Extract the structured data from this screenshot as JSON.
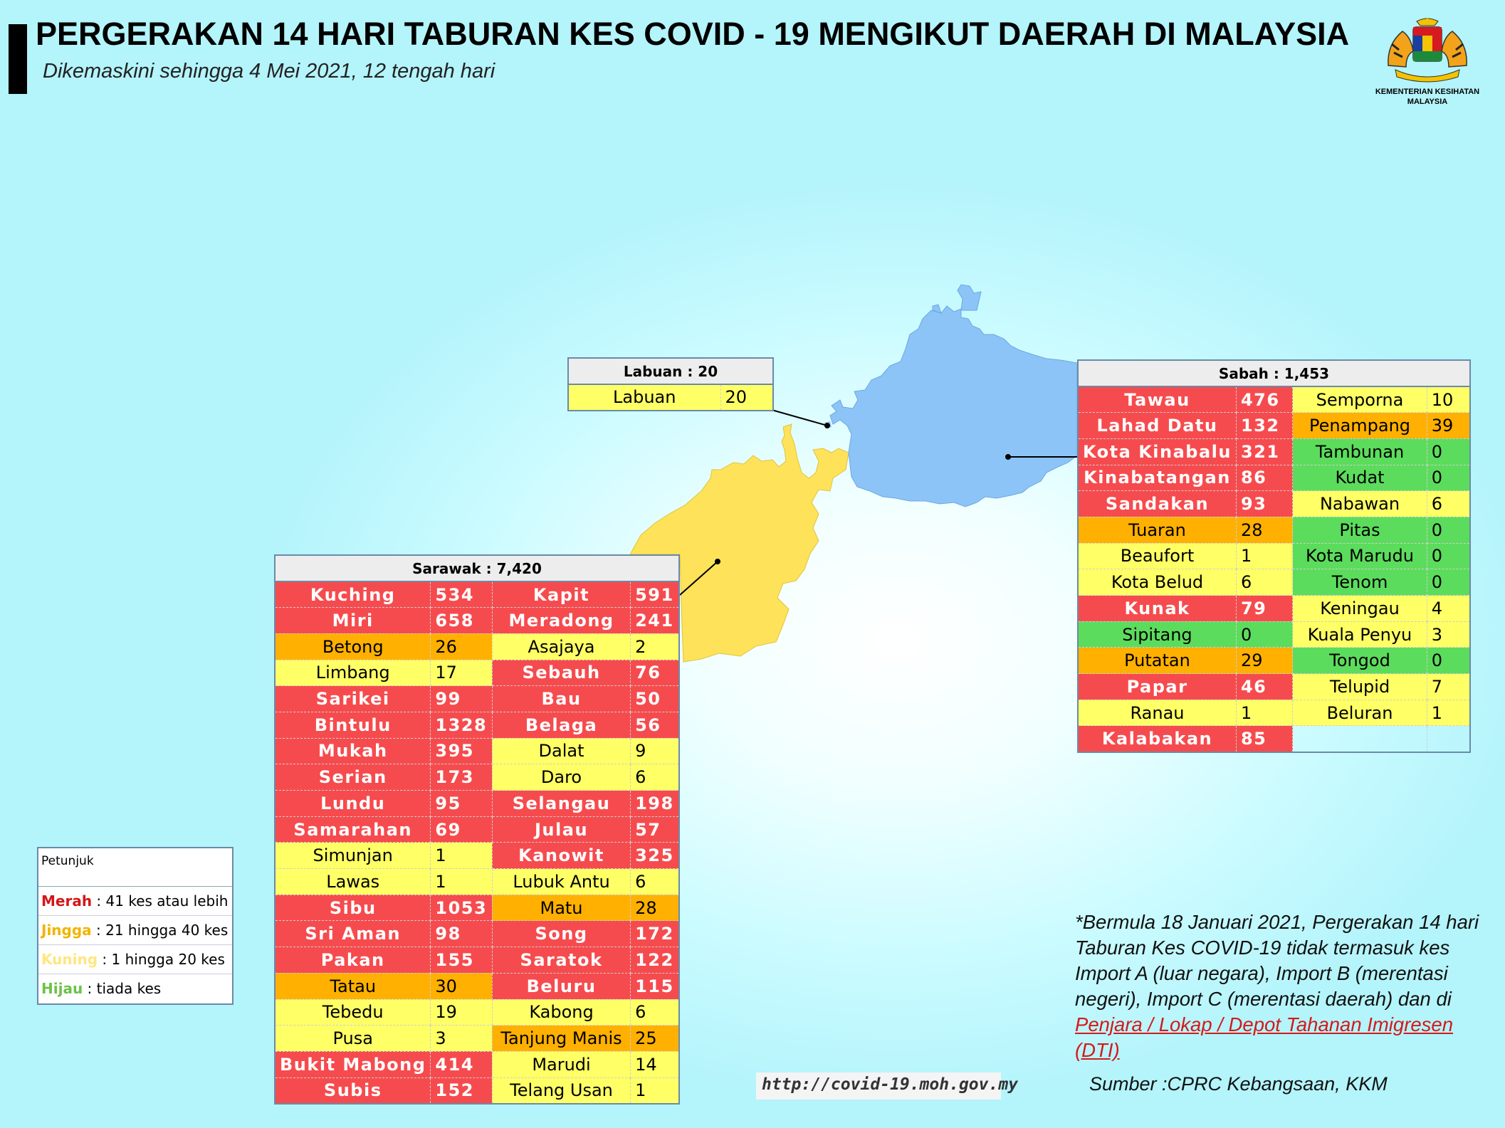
{
  "header": {
    "title": "PERGERAKAN 14 HARI TABURAN KES COVID - 19 MENGIKUT DAERAH DI MALAYSIA",
    "subtitle": "Dikemaskini sehingga 4 Mei 2021, 12 tengah hari"
  },
  "logo": {
    "line1": "KEMENTERIAN KESIHATAN",
    "line2": "MALAYSIA"
  },
  "colors": {
    "merah": "#f64b4e",
    "jingga": "#ffb000",
    "kuning": "#ffff66",
    "hijau": "#5cdc5c",
    "sarawak_map": "#fde25a",
    "sabah_map": "#8dc4f7"
  },
  "labuan": {
    "header": "Labuan : 20",
    "rows": [
      {
        "name": "Labuan",
        "value": "20",
        "level": "Y"
      }
    ]
  },
  "sabah": {
    "header": "Sabah : 1,453",
    "rows": [
      [
        {
          "name": "Tawau",
          "value": "476",
          "level": "R"
        },
        {
          "name": "Semporna",
          "value": "10",
          "level": "Y"
        }
      ],
      [
        {
          "name": "Lahad Datu",
          "value": "132",
          "level": "R"
        },
        {
          "name": "Penampang",
          "value": "39",
          "level": "O"
        }
      ],
      [
        {
          "name": "Kota Kinabalu",
          "value": "321",
          "level": "R"
        },
        {
          "name": "Tambunan",
          "value": "0",
          "level": "G"
        }
      ],
      [
        {
          "name": "Kinabatangan",
          "value": "86",
          "level": "R"
        },
        {
          "name": "Kudat",
          "value": "0",
          "level": "G"
        }
      ],
      [
        {
          "name": "Sandakan",
          "value": "93",
          "level": "R"
        },
        {
          "name": "Nabawan",
          "value": "6",
          "level": "Y"
        }
      ],
      [
        {
          "name": "Tuaran",
          "value": "28",
          "level": "O"
        },
        {
          "name": "Pitas",
          "value": "0",
          "level": "G"
        }
      ],
      [
        {
          "name": "Beaufort",
          "value": "1",
          "level": "Y"
        },
        {
          "name": "Kota Marudu",
          "value": "0",
          "level": "G"
        }
      ],
      [
        {
          "name": "Kota Belud",
          "value": "6",
          "level": "Y"
        },
        {
          "name": "Tenom",
          "value": "0",
          "level": "G"
        }
      ],
      [
        {
          "name": "Kunak",
          "value": "79",
          "level": "R"
        },
        {
          "name": "Keningau",
          "value": "4",
          "level": "Y"
        }
      ],
      [
        {
          "name": "Sipitang",
          "value": "0",
          "level": "G"
        },
        {
          "name": "Kuala Penyu",
          "value": "3",
          "level": "Y"
        }
      ],
      [
        {
          "name": "Putatan",
          "value": "29",
          "level": "O"
        },
        {
          "name": "Tongod",
          "value": "0",
          "level": "G"
        }
      ],
      [
        {
          "name": "Papar",
          "value": "46",
          "level": "R"
        },
        {
          "name": "Telupid",
          "value": "7",
          "level": "Y"
        }
      ],
      [
        {
          "name": "Ranau",
          "value": "1",
          "level": "Y"
        },
        {
          "name": "Beluran",
          "value": "1",
          "level": "Y"
        }
      ],
      [
        {
          "name": "Kalabakan",
          "value": "85",
          "level": "R"
        },
        {
          "name": "",
          "value": "",
          "level": "E"
        }
      ]
    ]
  },
  "sarawak": {
    "header": "Sarawak : 7,420",
    "rows": [
      [
        {
          "name": "Kuching",
          "value": "534",
          "level": "R"
        },
        {
          "name": "Kapit",
          "value": "591",
          "level": "R"
        }
      ],
      [
        {
          "name": "Miri",
          "value": "658",
          "level": "R"
        },
        {
          "name": "Meradong",
          "value": "241",
          "level": "R"
        }
      ],
      [
        {
          "name": "Betong",
          "value": "26",
          "level": "O"
        },
        {
          "name": "Asajaya",
          "value": "2",
          "level": "Y"
        }
      ],
      [
        {
          "name": "Limbang",
          "value": "17",
          "level": "Y"
        },
        {
          "name": "Sebauh",
          "value": "76",
          "level": "R"
        }
      ],
      [
        {
          "name": "Sarikei",
          "value": "99",
          "level": "R"
        },
        {
          "name": "Bau",
          "value": "50",
          "level": "R"
        }
      ],
      [
        {
          "name": "Bintulu",
          "value": "1328",
          "level": "R"
        },
        {
          "name": "Belaga",
          "value": "56",
          "level": "R"
        }
      ],
      [
        {
          "name": "Mukah",
          "value": "395",
          "level": "R"
        },
        {
          "name": "Dalat",
          "value": "9",
          "level": "Y"
        }
      ],
      [
        {
          "name": "Serian",
          "value": "173",
          "level": "R"
        },
        {
          "name": "Daro",
          "value": "6",
          "level": "Y"
        }
      ],
      [
        {
          "name": "Lundu",
          "value": "95",
          "level": "R"
        },
        {
          "name": "Selangau",
          "value": "198",
          "level": "R"
        }
      ],
      [
        {
          "name": "Samarahan",
          "value": "69",
          "level": "R"
        },
        {
          "name": "Julau",
          "value": "57",
          "level": "R"
        }
      ],
      [
        {
          "name": "Simunjan",
          "value": "1",
          "level": "Y"
        },
        {
          "name": "Kanowit",
          "value": "325",
          "level": "R"
        }
      ],
      [
        {
          "name": "Lawas",
          "value": "1",
          "level": "Y"
        },
        {
          "name": "Lubuk Antu",
          "value": "6",
          "level": "Y"
        }
      ],
      [
        {
          "name": "Sibu",
          "value": "1053",
          "level": "R"
        },
        {
          "name": "Matu",
          "value": "28",
          "level": "O"
        }
      ],
      [
        {
          "name": "Sri Aman",
          "value": "98",
          "level": "R"
        },
        {
          "name": "Song",
          "value": "172",
          "level": "R"
        }
      ],
      [
        {
          "name": "Pakan",
          "value": "155",
          "level": "R"
        },
        {
          "name": "Saratok",
          "value": "122",
          "level": "R"
        }
      ],
      [
        {
          "name": "Tatau",
          "value": "30",
          "level": "O"
        },
        {
          "name": "Beluru",
          "value": "115",
          "level": "R"
        }
      ],
      [
        {
          "name": "Tebedu",
          "value": "19",
          "level": "Y"
        },
        {
          "name": "Kabong",
          "value": "6",
          "level": "Y"
        }
      ],
      [
        {
          "name": "Pusa",
          "value": "3",
          "level": "Y"
        },
        {
          "name": "Tanjung Manis",
          "value": "25",
          "level": "O"
        }
      ],
      [
        {
          "name": "Bukit Mabong",
          "value": "414",
          "level": "R"
        },
        {
          "name": "Marudi",
          "value": "14",
          "level": "Y"
        }
      ],
      [
        {
          "name": "Subis",
          "value": "152",
          "level": "R"
        },
        {
          "name": "Telang Usan",
          "value": "1",
          "level": "Y"
        }
      ]
    ]
  },
  "legend": {
    "title": "Petunjuk",
    "items": [
      {
        "key": "Merah",
        "text": " : 41 kes atau lebih",
        "color": "#d41616"
      },
      {
        "key": "Jingga",
        "text": " : 21 hingga 40 kes",
        "color": "#f2b400"
      },
      {
        "key": "Kuning",
        "text": " : 1 hingga 20 kes",
        "color": "#ffe680"
      },
      {
        "key": "Hijau",
        "text": " : tiada kes",
        "color": "#6cc24a"
      }
    ]
  },
  "note": {
    "text": "*Bermula 18 Januari 2021, Pergerakan 14 hari Taburan Kes COVID-19 tidak termasuk kes Import A (luar negara), Import B (merentasi negeri), Import C (merentasi daerah) dan di ",
    "link": "Penjara / Lokap / Depot Tahanan Imigresen (DTI)"
  },
  "url": "http://covid-19.moh.gov.my",
  "source": "Sumber :CPRC Kebangsaan,  KKM"
}
